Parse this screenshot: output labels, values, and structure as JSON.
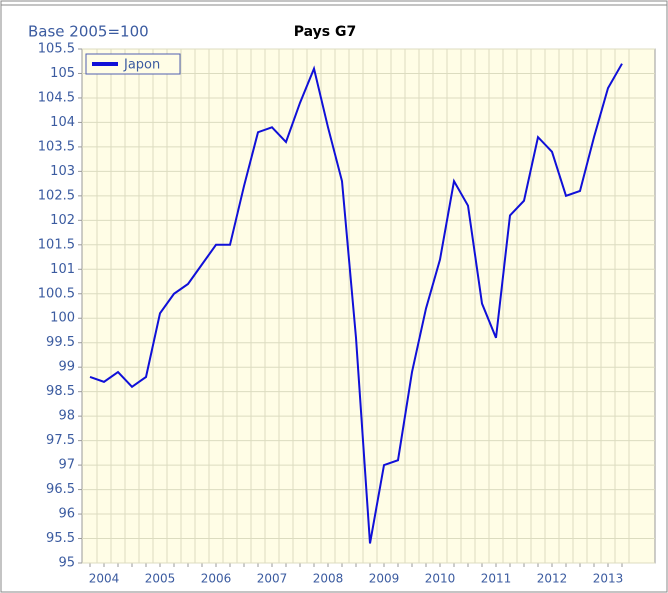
{
  "chart_data": {
    "type": "line",
    "title": "Pays G7",
    "subtitle": "Base 2005=100",
    "categories": [
      null,
      "2004",
      null,
      null,
      null,
      "2005",
      null,
      null,
      null,
      "2006",
      null,
      null,
      null,
      "2007",
      null,
      null,
      null,
      "2008",
      null,
      null,
      null,
      "2009",
      null,
      null,
      null,
      "2010",
      null,
      null,
      null,
      "2011",
      null,
      null,
      null,
      "2012",
      null,
      null,
      null,
      "2013",
      null
    ],
    "series": [
      {
        "name": "Japon",
        "color": "#1010d8",
        "values": [
          98.8,
          98.7,
          98.9,
          98.6,
          98.8,
          100.1,
          100.5,
          100.7,
          101.1,
          101.5,
          101.5,
          102.7,
          103.8,
          103.9,
          103.6,
          104.4,
          105.1,
          103.9,
          102.8,
          99.6,
          95.4,
          97.0,
          97.1,
          98.9,
          100.2,
          101.2,
          102.8,
          102.3,
          100.3,
          99.6,
          102.1,
          102.4,
          103.7,
          103.4,
          102.5,
          102.6,
          103.7,
          104.7,
          105.2
        ]
      }
    ],
    "ylim": [
      95,
      105.5
    ],
    "yticks": [
      95,
      95.5,
      96,
      96.5,
      97,
      97.5,
      98,
      98.5,
      99,
      99.5,
      100,
      100.5,
      101,
      101.5,
      102,
      102.5,
      103,
      103.5,
      104,
      104.5,
      105,
      105.5
    ],
    "grid": true,
    "legend": "top-left"
  }
}
